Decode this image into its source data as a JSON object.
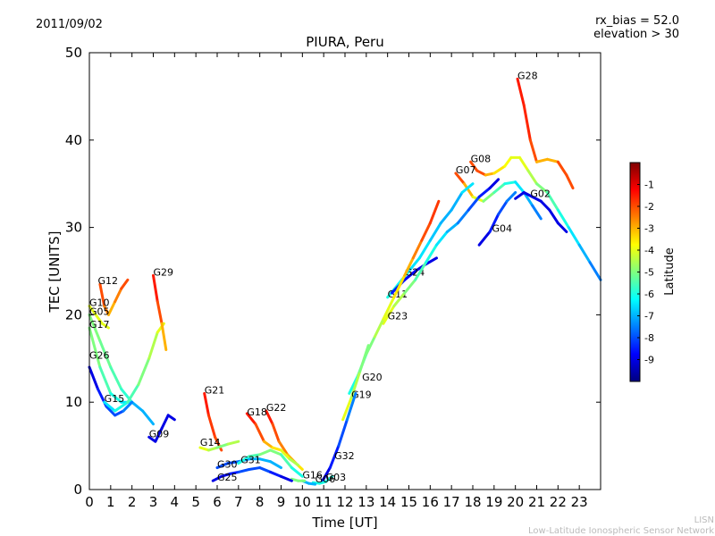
{
  "date": "2011/09/02",
  "rx_bias_text": "rx_bias = 52.0",
  "elevation_text": "elevation > 30",
  "footer_line1": "LISN",
  "footer_line2": "Low-Latitude Ionospheric Sensor Network",
  "chart_data": {
    "type": "scatter",
    "title": "PIURA, Peru",
    "xlabel": "Time [UT]",
    "ylabel": "TEC [UNITS]",
    "xlim": [
      0,
      24
    ],
    "ylim": [
      0,
      50
    ],
    "xticks": [
      "0",
      "1",
      "2",
      "3",
      "4",
      "5",
      "6",
      "7",
      "8",
      "9",
      "10",
      "11",
      "12",
      "13",
      "14",
      "15",
      "16",
      "17",
      "18",
      "19",
      "20",
      "21",
      "22",
      "23"
    ],
    "yticks": [
      "0",
      "10",
      "20",
      "30",
      "40",
      "50"
    ],
    "grid": false,
    "colorbar": {
      "label": "Latitude",
      "ticks": [
        "-1",
        "-2",
        "-3",
        "-4",
        "-5",
        "-6",
        "-7",
        "-8",
        "-9"
      ],
      "range": [
        -10,
        0
      ],
      "colormap": [
        "#00007f",
        "#0000ff",
        "#007fff",
        "#00ffff",
        "#7fff7f",
        "#ffff00",
        "#ff7f00",
        "#ff0000",
        "#7f0000"
      ]
    },
    "series": [
      {
        "name": "G28",
        "label_at": [
          20.1,
          47
        ],
        "points": [
          [
            20.1,
            47
          ],
          [
            20.4,
            44
          ],
          [
            20.7,
            40
          ],
          [
            21,
            37.5
          ],
          [
            21.5,
            37.8
          ],
          [
            22,
            37.5
          ],
          [
            22.4,
            36
          ],
          [
            22.7,
            34.5
          ]
        ],
        "lat": [
          -1.5,
          -1.6,
          -2,
          -3,
          -3,
          -2,
          -2,
          -3
        ]
      },
      {
        "name": "G08",
        "label_at": [
          17.9,
          37.5
        ],
        "points": [
          [
            17.9,
            37.5
          ],
          [
            18.2,
            36.5
          ],
          [
            18.6,
            36
          ],
          [
            19,
            36.2
          ],
          [
            19.5,
            37
          ],
          [
            19.8,
            38
          ],
          [
            20.2,
            38
          ],
          [
            20.6,
            36.5
          ],
          [
            21,
            35
          ],
          [
            21.5,
            34
          ],
          [
            22,
            32
          ],
          [
            22.5,
            30
          ],
          [
            23,
            28
          ],
          [
            23.5,
            26
          ],
          [
            24,
            24
          ]
        ],
        "lat": [
          -2,
          -2,
          -3,
          -3.5,
          -3.8,
          -4,
          -4,
          -4.5,
          -5,
          -5.5,
          -6,
          -6.5,
          -7,
          -7.5,
          -8
        ]
      },
      {
        "name": "G07",
        "label_at": [
          17.2,
          36.2
        ],
        "points": [
          [
            17.2,
            36.2
          ],
          [
            17.6,
            35
          ],
          [
            18,
            33.5
          ],
          [
            18.5,
            33
          ],
          [
            19,
            34
          ],
          [
            19.5,
            35
          ],
          [
            20,
            35.2
          ],
          [
            20.4,
            34
          ],
          [
            20.8,
            32.5
          ],
          [
            21.2,
            31
          ]
        ],
        "lat": [
          -2,
          -3,
          -4,
          -5,
          -5.5,
          -6,
          -6.5,
          -7,
          -7.5,
          -8
        ]
      },
      {
        "name": "G02",
        "label_at": [
          20.7,
          33.5
        ],
        "points": [
          [
            20,
            33.3
          ],
          [
            20.4,
            34
          ],
          [
            20.8,
            33.5
          ],
          [
            21.2,
            33
          ],
          [
            21.6,
            32
          ],
          [
            22,
            30.5
          ],
          [
            22.4,
            29.5
          ]
        ],
        "lat": [
          -9,
          -9,
          -9,
          -9,
          -9,
          -9,
          -9
        ]
      },
      {
        "name": "G04",
        "label_at": [
          18.9,
          29.5
        ],
        "points": [
          [
            18.3,
            28
          ],
          [
            18.8,
            29.5
          ],
          [
            19.2,
            31.5
          ],
          [
            19.6,
            33
          ],
          [
            20,
            34
          ]
        ],
        "lat": [
          -9,
          -8.5,
          -8,
          -7.5,
          -7
        ]
      },
      {
        "name": "G11",
        "label_at": [
          14,
          22
        ],
        "points": [
          [
            14,
            22
          ],
          [
            14.5,
            23.5
          ],
          [
            15,
            25
          ],
          [
            15.5,
            26.5
          ],
          [
            16,
            28.5
          ],
          [
            16.5,
            30.5
          ],
          [
            17,
            32
          ],
          [
            17.5,
            34
          ],
          [
            18,
            35
          ]
        ],
        "lat": [
          -6,
          -6.2,
          -6.5,
          -6.5,
          -6.8,
          -7,
          -7,
          -6.5,
          -6
        ]
      },
      {
        "name": "G24",
        "label_at": [
          14.8,
          24.5
        ],
        "points": [
          [
            14.2,
            22.5
          ],
          [
            14.8,
            24
          ],
          [
            15.3,
            25
          ],
          [
            15.8,
            25.8
          ],
          [
            16.3,
            26.5
          ]
        ],
        "lat": [
          -8.5,
          -8.8,
          -9,
          -9,
          -9
        ]
      },
      {
        "name": "G23",
        "label_at": [
          14,
          19.5
        ],
        "points": [
          [
            13.8,
            19
          ],
          [
            14.3,
            21
          ],
          [
            14.8,
            22.5
          ],
          [
            15.3,
            24
          ],
          [
            15.8,
            26
          ],
          [
            16.3,
            28
          ],
          [
            16.8,
            29.5
          ],
          [
            17.3,
            30.5
          ],
          [
            17.8,
            32
          ],
          [
            18.3,
            33.5
          ],
          [
            18.8,
            34.5
          ],
          [
            19.2,
            35.5
          ]
        ],
        "lat": [
          -4,
          -4.5,
          -5,
          -5.5,
          -6,
          -6.5,
          -7,
          -7.5,
          -8,
          -8.5,
          -9,
          -9
        ]
      },
      {
        "name": "G20",
        "label_at": [
          12.8,
          12.5
        ],
        "points": [
          [
            12.2,
            11
          ],
          [
            12.6,
            13
          ],
          [
            13,
            15.5
          ],
          [
            13.4,
            17.5
          ],
          [
            13.8,
            19.5
          ],
          [
            14.3,
            22
          ],
          [
            14.8,
            24.5
          ],
          [
            15.2,
            26.5
          ],
          [
            15.6,
            28.5
          ],
          [
            16,
            30.5
          ],
          [
            16.4,
            33
          ]
        ],
        "lat": [
          -6,
          -5.5,
          -5,
          -4.5,
          -4,
          -3.5,
          -3,
          -2.5,
          -2,
          -1.8,
          -1.5
        ]
      },
      {
        "name": "G19",
        "label_at": [
          12.3,
          10.5
        ],
        "points": [
          [
            11.9,
            8
          ],
          [
            12.3,
            10.5
          ],
          [
            12.7,
            13.5
          ],
          [
            13.1,
            16.5
          ]
        ],
        "lat": [
          -4,
          -4.5,
          -5,
          -5.5
        ]
      },
      {
        "name": "G32",
        "label_at": [
          11.5,
          3.5
        ],
        "points": [
          [
            10.9,
            0.8
          ],
          [
            11.3,
            2.5
          ],
          [
            11.7,
            5
          ],
          [
            12.1,
            8
          ],
          [
            12.5,
            11
          ]
        ],
        "lat": [
          -9,
          -8.5,
          -8,
          -7.5,
          -7
        ]
      },
      {
        "name": "G03",
        "label_at": [
          11.1,
          1
        ],
        "points": [
          [
            10.5,
            0.8
          ],
          [
            10.8,
            0.7
          ],
          [
            11.1,
            0.9
          ],
          [
            11.4,
            1.5
          ]
        ],
        "lat": [
          -6,
          -6,
          -6,
          -6
        ]
      },
      {
        "name": "G06",
        "label_at": [
          10.6,
          0.8
        ],
        "points": [
          [
            10,
            1
          ],
          [
            10.3,
            0.7
          ],
          [
            10.6,
            0.6
          ]
        ],
        "lat": [
          -7,
          -7,
          -7
        ]
      },
      {
        "name": "G16",
        "label_at": [
          10,
          1.3
        ],
        "points": [
          [
            9.5,
            1.2
          ],
          [
            9.8,
            1
          ],
          [
            10.1,
            1
          ]
        ],
        "lat": [
          -5,
          -5,
          -5
        ]
      },
      {
        "name": "G22",
        "label_at": [
          8.3,
          9
        ],
        "points": [
          [
            8.3,
            9
          ],
          [
            8.6,
            7.5
          ],
          [
            8.9,
            5.5
          ],
          [
            9.3,
            4
          ],
          [
            9.7,
            3
          ],
          [
            10,
            2.3
          ]
        ],
        "lat": [
          -1.5,
          -2,
          -2.5,
          -3,
          -3.5,
          -4
        ]
      },
      {
        "name": "G18",
        "label_at": [
          7.4,
          8.5
        ],
        "points": [
          [
            7.4,
            8.7
          ],
          [
            7.8,
            7.5
          ],
          [
            8.2,
            5.5
          ],
          [
            8.6,
            4.8
          ],
          [
            9,
            4.5
          ],
          [
            9.4,
            3.5
          ],
          [
            9.8,
            2.8
          ]
        ],
        "lat": [
          -1.5,
          -2,
          -3,
          -3.5,
          -4,
          -4.5,
          -5
        ]
      },
      {
        "name": "G21",
        "label_at": [
          5.4,
          11
        ],
        "points": [
          [
            5.4,
            11
          ],
          [
            5.6,
            8.5
          ],
          [
            5.9,
            6
          ],
          [
            6.2,
            4.5
          ]
        ],
        "lat": [
          -1.5,
          -1.8,
          -2,
          -2.5
        ]
      },
      {
        "name": "G14",
        "label_at": [
          5.2,
          5
        ],
        "points": [
          [
            5.2,
            4.8
          ],
          [
            5.6,
            4.5
          ],
          [
            6,
            4.8
          ],
          [
            6.5,
            5.2
          ],
          [
            7,
            5.5
          ]
        ],
        "lat": [
          -4,
          -4.5,
          -5,
          -4.5,
          -4
        ]
      },
      {
        "name": "G30",
        "label_at": [
          6,
          2.5
        ],
        "points": [
          [
            6,
            2.5
          ],
          [
            6.5,
            3
          ],
          [
            7,
            3.2
          ],
          [
            7.5,
            3.5
          ],
          [
            8,
            3.5
          ],
          [
            8.5,
            3.2
          ],
          [
            9,
            2.5
          ]
        ],
        "lat": [
          -8,
          -8,
          -7.5,
          -7,
          -7,
          -7,
          -6.5
        ]
      },
      {
        "name": "G31",
        "label_at": [
          7.1,
          3
        ],
        "points": [
          [
            7,
            3
          ],
          [
            7.5,
            3.8
          ],
          [
            8,
            4
          ],
          [
            8.5,
            4.5
          ],
          [
            9,
            4
          ],
          [
            9.5,
            2.5
          ],
          [
            10,
            1.5
          ]
        ],
        "lat": [
          -6,
          -5.5,
          -5,
          -5,
          -5.5,
          -6,
          -6.5
        ]
      },
      {
        "name": "G25",
        "label_at": [
          6,
          1
        ],
        "points": [
          [
            5.8,
            1
          ],
          [
            6.2,
            1.5
          ],
          [
            6.6,
            1.8
          ],
          [
            7,
            2
          ],
          [
            7.5,
            2.3
          ],
          [
            8,
            2.5
          ],
          [
            8.5,
            2
          ],
          [
            9,
            1.5
          ],
          [
            9.5,
            1
          ]
        ],
        "lat": [
          -9,
          -9,
          -8.5,
          -8,
          -8,
          -8,
          -8.5,
          -9,
          -9
        ]
      },
      {
        "name": "G12",
        "label_at": [
          0.4,
          23.5
        ],
        "points": [
          [
            0.5,
            23.5
          ],
          [
            0.7,
            21
          ],
          [
            0.9,
            20
          ],
          [
            1.2,
            21.5
          ],
          [
            1.5,
            23
          ],
          [
            1.8,
            24
          ]
        ],
        "lat": [
          -2,
          -2.5,
          -3,
          -2.5,
          -2,
          -1.5
        ]
      },
      {
        "name": "G10",
        "label_at": [
          0,
          21
        ],
        "points": [
          [
            0,
            21
          ],
          [
            0.3,
            20
          ],
          [
            0.6,
            19
          ],
          [
            0.9,
            18.5
          ]
        ],
        "lat": [
          -4,
          -4,
          -4,
          -4
        ]
      },
      {
        "name": "G05",
        "label_at": [
          0,
          20
        ],
        "points": [
          [
            0,
            20
          ],
          [
            0.5,
            17
          ],
          [
            1,
            14
          ],
          [
            1.5,
            11.5
          ],
          [
            2,
            10
          ]
        ],
        "lat": [
          -5,
          -5.2,
          -5.5,
          -5.8,
          -6
        ]
      },
      {
        "name": "G17",
        "label_at": [
          0,
          18.5
        ],
        "points": [
          [
            0,
            18.5
          ],
          [
            0.5,
            14
          ],
          [
            1,
            11
          ],
          [
            1.5,
            10
          ],
          [
            2,
            10
          ],
          [
            2.5,
            9
          ],
          [
            3,
            7.5
          ]
        ],
        "lat": [
          -5,
          -5.5,
          -6,
          -6.5,
          -7,
          -7,
          -7
        ]
      },
      {
        "name": "G26",
        "label_at": [
          0,
          15
        ],
        "points": [
          [
            0,
            14
          ],
          [
            0.4,
            11.5
          ],
          [
            0.8,
            9.5
          ],
          [
            1.2,
            8.5
          ],
          [
            1.6,
            9
          ],
          [
            2,
            10
          ]
        ],
        "lat": [
          -9,
          -8.5,
          -8,
          -8,
          -7.5,
          -7
        ]
      },
      {
        "name": "G15",
        "label_at": [
          0.7,
          10
        ],
        "points": [
          [
            0.7,
            10
          ],
          [
            1.2,
            9
          ],
          [
            1.8,
            10
          ],
          [
            2.3,
            12
          ],
          [
            2.8,
            15
          ],
          [
            3.2,
            18
          ],
          [
            3.5,
            19
          ]
        ],
        "lat": [
          -6.5,
          -6,
          -5.5,
          -5,
          -4.5,
          -4,
          -3.5
        ]
      },
      {
        "name": "G29",
        "label_at": [
          3,
          24.5
        ],
        "points": [
          [
            3,
            24.5
          ],
          [
            3.2,
            21.5
          ],
          [
            3.4,
            19
          ],
          [
            3.6,
            16
          ]
        ],
        "lat": [
          -1.5,
          -2,
          -3,
          -4
        ]
      },
      {
        "name": "G09",
        "label_at": [
          2.8,
          6
        ],
        "points": [
          [
            2.8,
            6
          ],
          [
            3.1,
            5.5
          ],
          [
            3.4,
            7
          ],
          [
            3.7,
            8.5
          ],
          [
            4,
            8
          ]
        ],
        "lat": [
          -9,
          -9,
          -9,
          -9,
          -9
        ]
      }
    ]
  }
}
